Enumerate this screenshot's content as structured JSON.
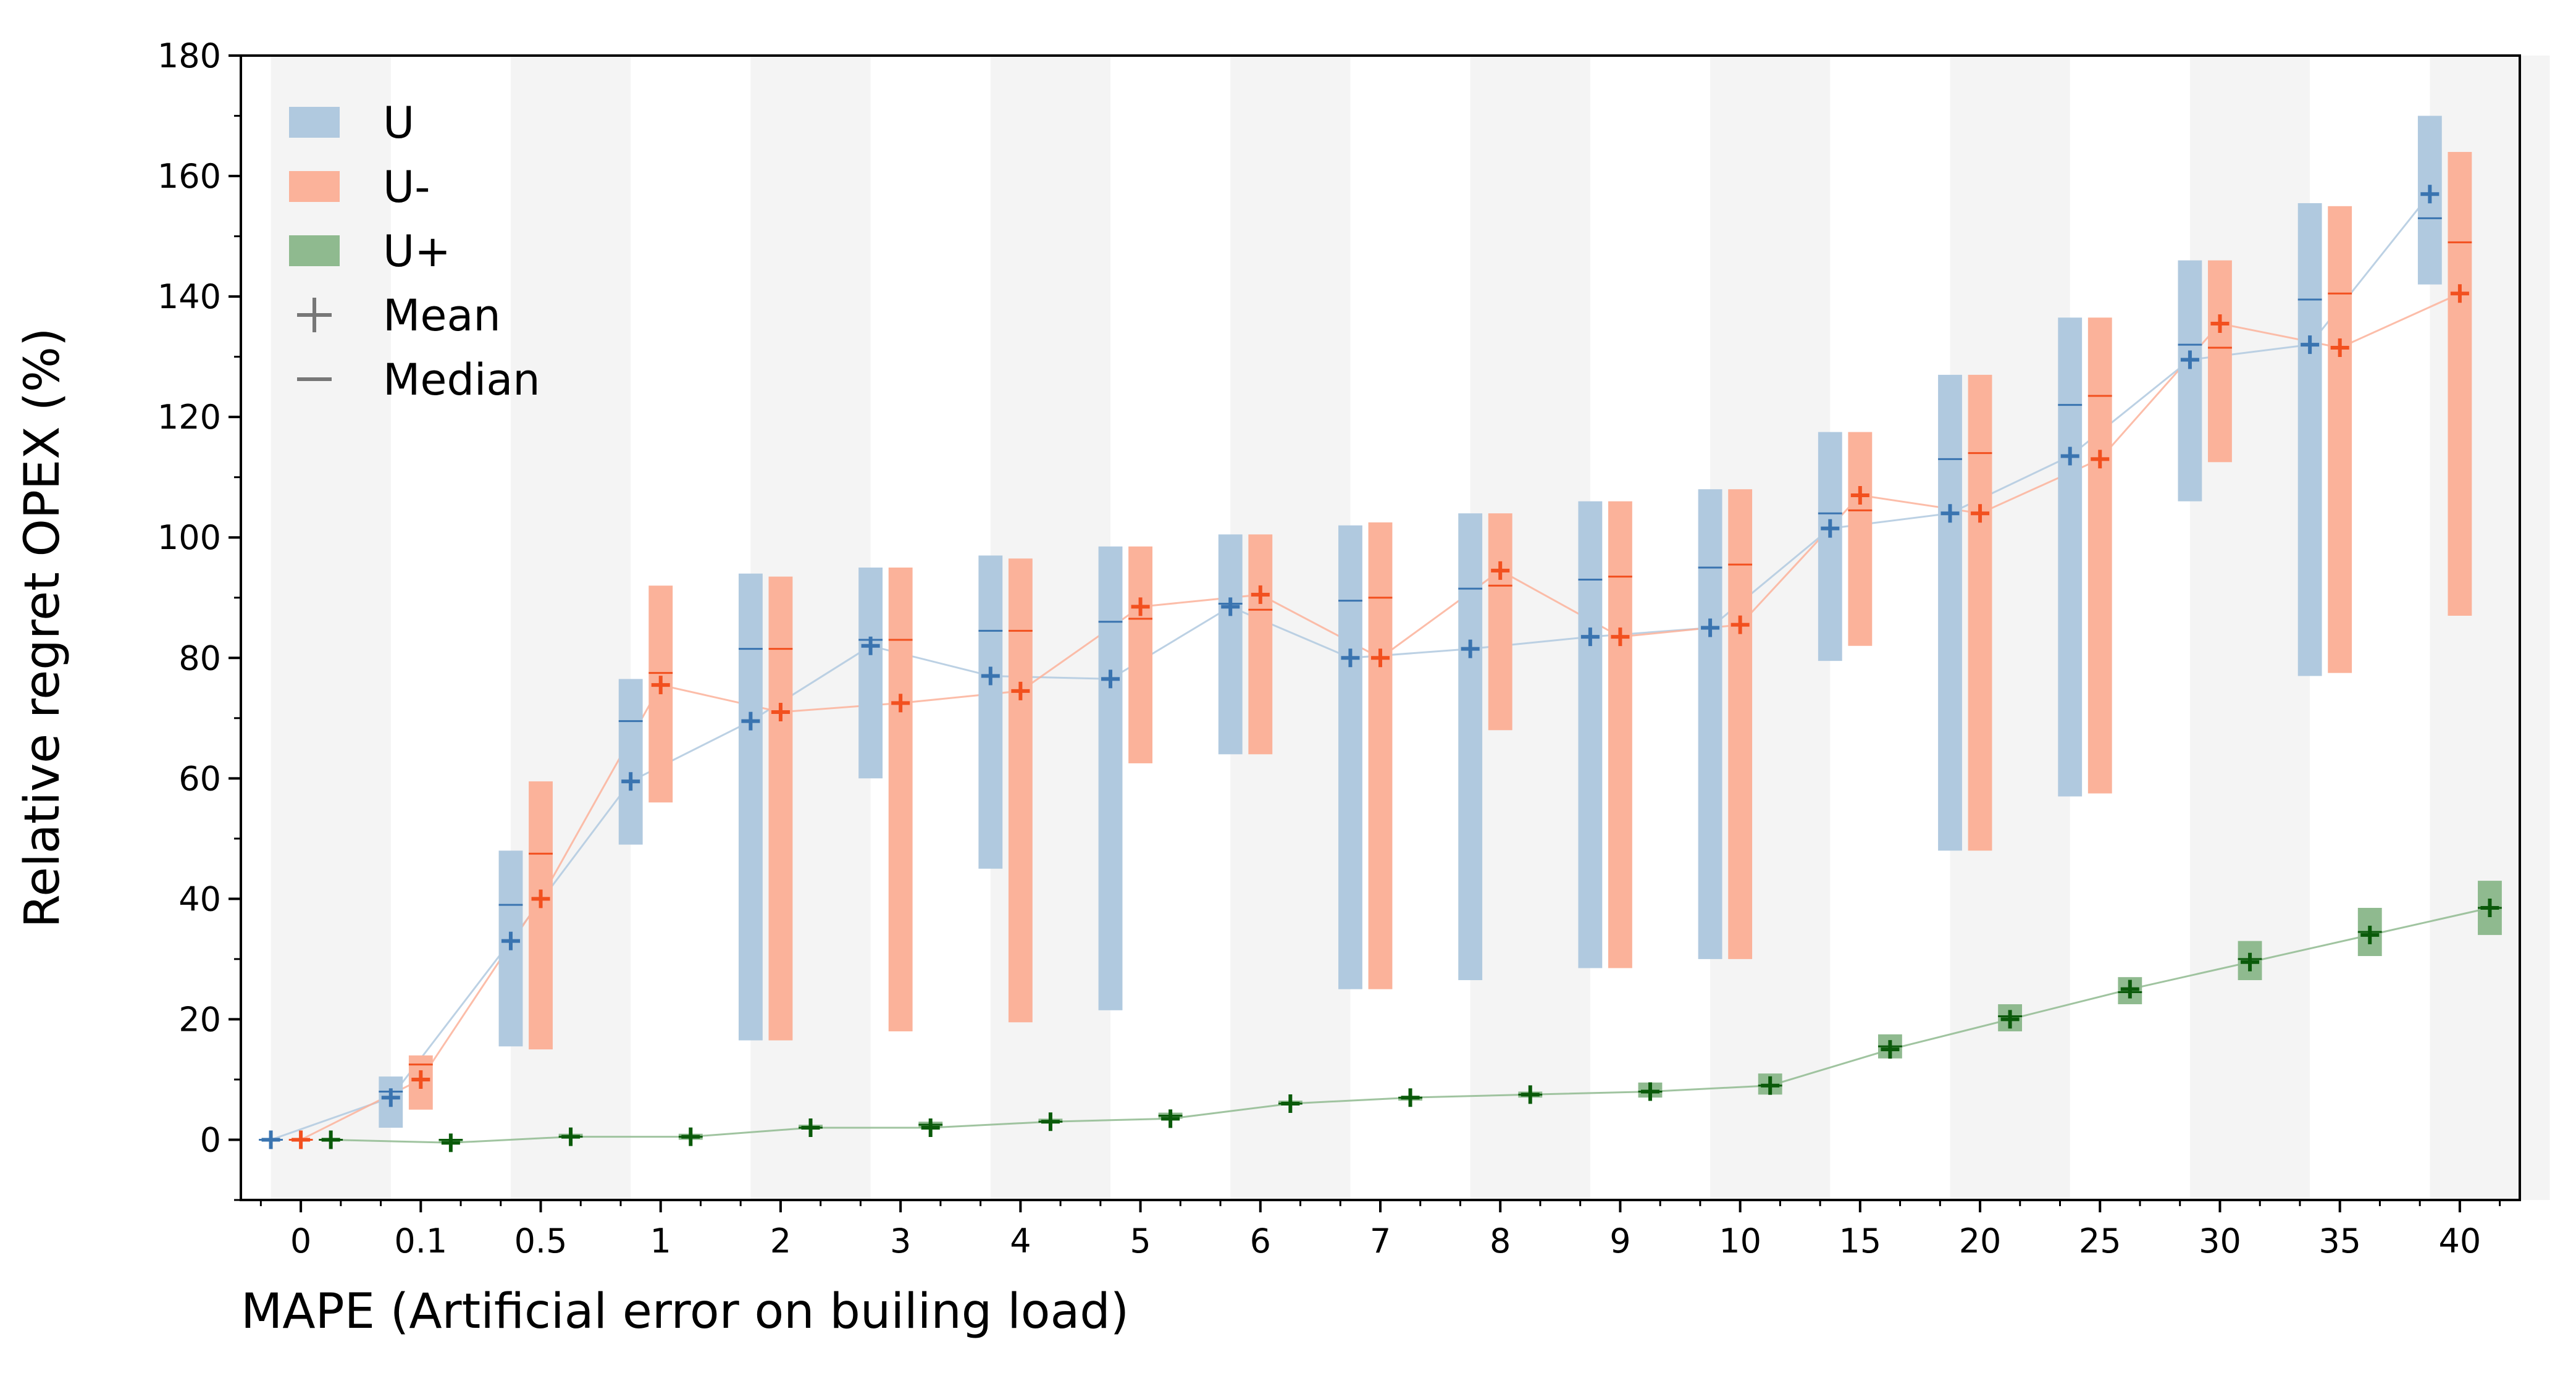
{
  "chart_data": {
    "type": "bar",
    "xlabel": "MAPE (Artificial error on builing load)",
    "ylabel": "Relative regret OPEX (%)",
    "ylim": [
      -10,
      180
    ],
    "yticks": [
      "0",
      "20",
      "40",
      "60",
      "80",
      "100",
      "120",
      "140",
      "160",
      "180"
    ],
    "categories": [
      "0",
      "0.1",
      "0.5",
      "1",
      "2",
      "3",
      "4",
      "5",
      "6",
      "7",
      "8",
      "9",
      "10",
      "15",
      "20",
      "25",
      "30",
      "35",
      "40"
    ],
    "grid": false,
    "alternating_background": true,
    "legend": {
      "position": "upper-left",
      "entries": [
        {
          "label": "U",
          "kind": "box",
          "color": "#b0c9df"
        },
        {
          "label": "U-",
          "kind": "box",
          "color": "#fbb29a"
        },
        {
          "label": "U+",
          "kind": "box",
          "color": "#8fba8f"
        },
        {
          "label": "Mean",
          "kind": "plus",
          "color": "#777777"
        },
        {
          "label": "Median",
          "kind": "dash",
          "color": "#777777"
        }
      ]
    },
    "series": [
      {
        "name": "U",
        "box_color": "#b0c9df",
        "line_color": "#b0c9df",
        "marker_color": "#3a74b0",
        "low": [
          0,
          2,
          15.5,
          49,
          16.5,
          60,
          45,
          21.5,
          64,
          25,
          26.5,
          28.5,
          30,
          79.5,
          48,
          57,
          106,
          77,
          142
        ],
        "high": [
          0,
          10.5,
          48,
          76.5,
          94,
          95,
          97,
          98.5,
          100.5,
          102,
          104,
          106,
          108,
          117.5,
          127,
          136.5,
          146,
          155.5,
          170
        ],
        "median": [
          0,
          8,
          39,
          69.5,
          81.5,
          83,
          84.5,
          86,
          89,
          89.5,
          91.5,
          93,
          95,
          104,
          113,
          122,
          132,
          139.5,
          153
        ],
        "mean": [
          0,
          7,
          33,
          59.5,
          69.5,
          82,
          77,
          76.5,
          88.5,
          80,
          81.5,
          83.5,
          85,
          101.5,
          104,
          113.5,
          129.5,
          132,
          157
        ]
      },
      {
        "name": "U-",
        "box_color": "#fbb29a",
        "line_color": "#fbb29a",
        "marker_color": "#f2501f",
        "low": [
          0,
          5,
          15,
          56,
          16.5,
          18,
          19.5,
          62.5,
          64,
          25,
          68,
          28.5,
          30,
          82,
          48,
          57.5,
          112.5,
          77.5,
          87
        ],
        "high": [
          0,
          14,
          59.5,
          92,
          93.5,
          95,
          96.5,
          98.5,
          100.5,
          102.5,
          104,
          106,
          108,
          117.5,
          127,
          136.5,
          146,
          155,
          164
        ],
        "median": [
          0,
          12.5,
          47.5,
          77.5,
          81.5,
          83,
          84.5,
          86.5,
          88,
          90,
          92,
          93.5,
          95.5,
          104.5,
          114,
          123.5,
          131.5,
          140.5,
          149
        ],
        "mean": [
          0,
          10,
          40,
          75.5,
          71,
          72.5,
          74.5,
          88.5,
          90.5,
          80,
          94.5,
          83.5,
          85.5,
          107,
          104,
          113,
          135.5,
          131.5,
          140.5
        ]
      },
      {
        "name": "U+",
        "box_color": "#8fba8f",
        "line_color": "#8fba8f",
        "marker_color": "#0a5a0a",
        "low": [
          0,
          -0.5,
          0.5,
          0,
          2,
          2,
          3,
          3.5,
          6,
          6.5,
          7,
          7,
          7.5,
          13.5,
          18,
          22.5,
          26.5,
          30.5,
          34
        ],
        "high": [
          0,
          0,
          1,
          1,
          2.5,
          3,
          3.5,
          4.5,
          6.5,
          7,
          8,
          9.5,
          11,
          17.5,
          22.5,
          27,
          33,
          38.5,
          43
        ],
        "median": [
          0,
          0,
          0.5,
          0.5,
          2,
          2.5,
          3,
          4,
          6,
          7,
          7.5,
          8,
          9,
          15.5,
          20.5,
          24.5,
          30,
          34.5,
          38.5
        ],
        "mean": [
          0,
          -0.5,
          0.5,
          0.5,
          2,
          2,
          3,
          3.5,
          6,
          7,
          7.5,
          8,
          9,
          15,
          20,
          25,
          29.5,
          34,
          38.5
        ]
      }
    ]
  }
}
